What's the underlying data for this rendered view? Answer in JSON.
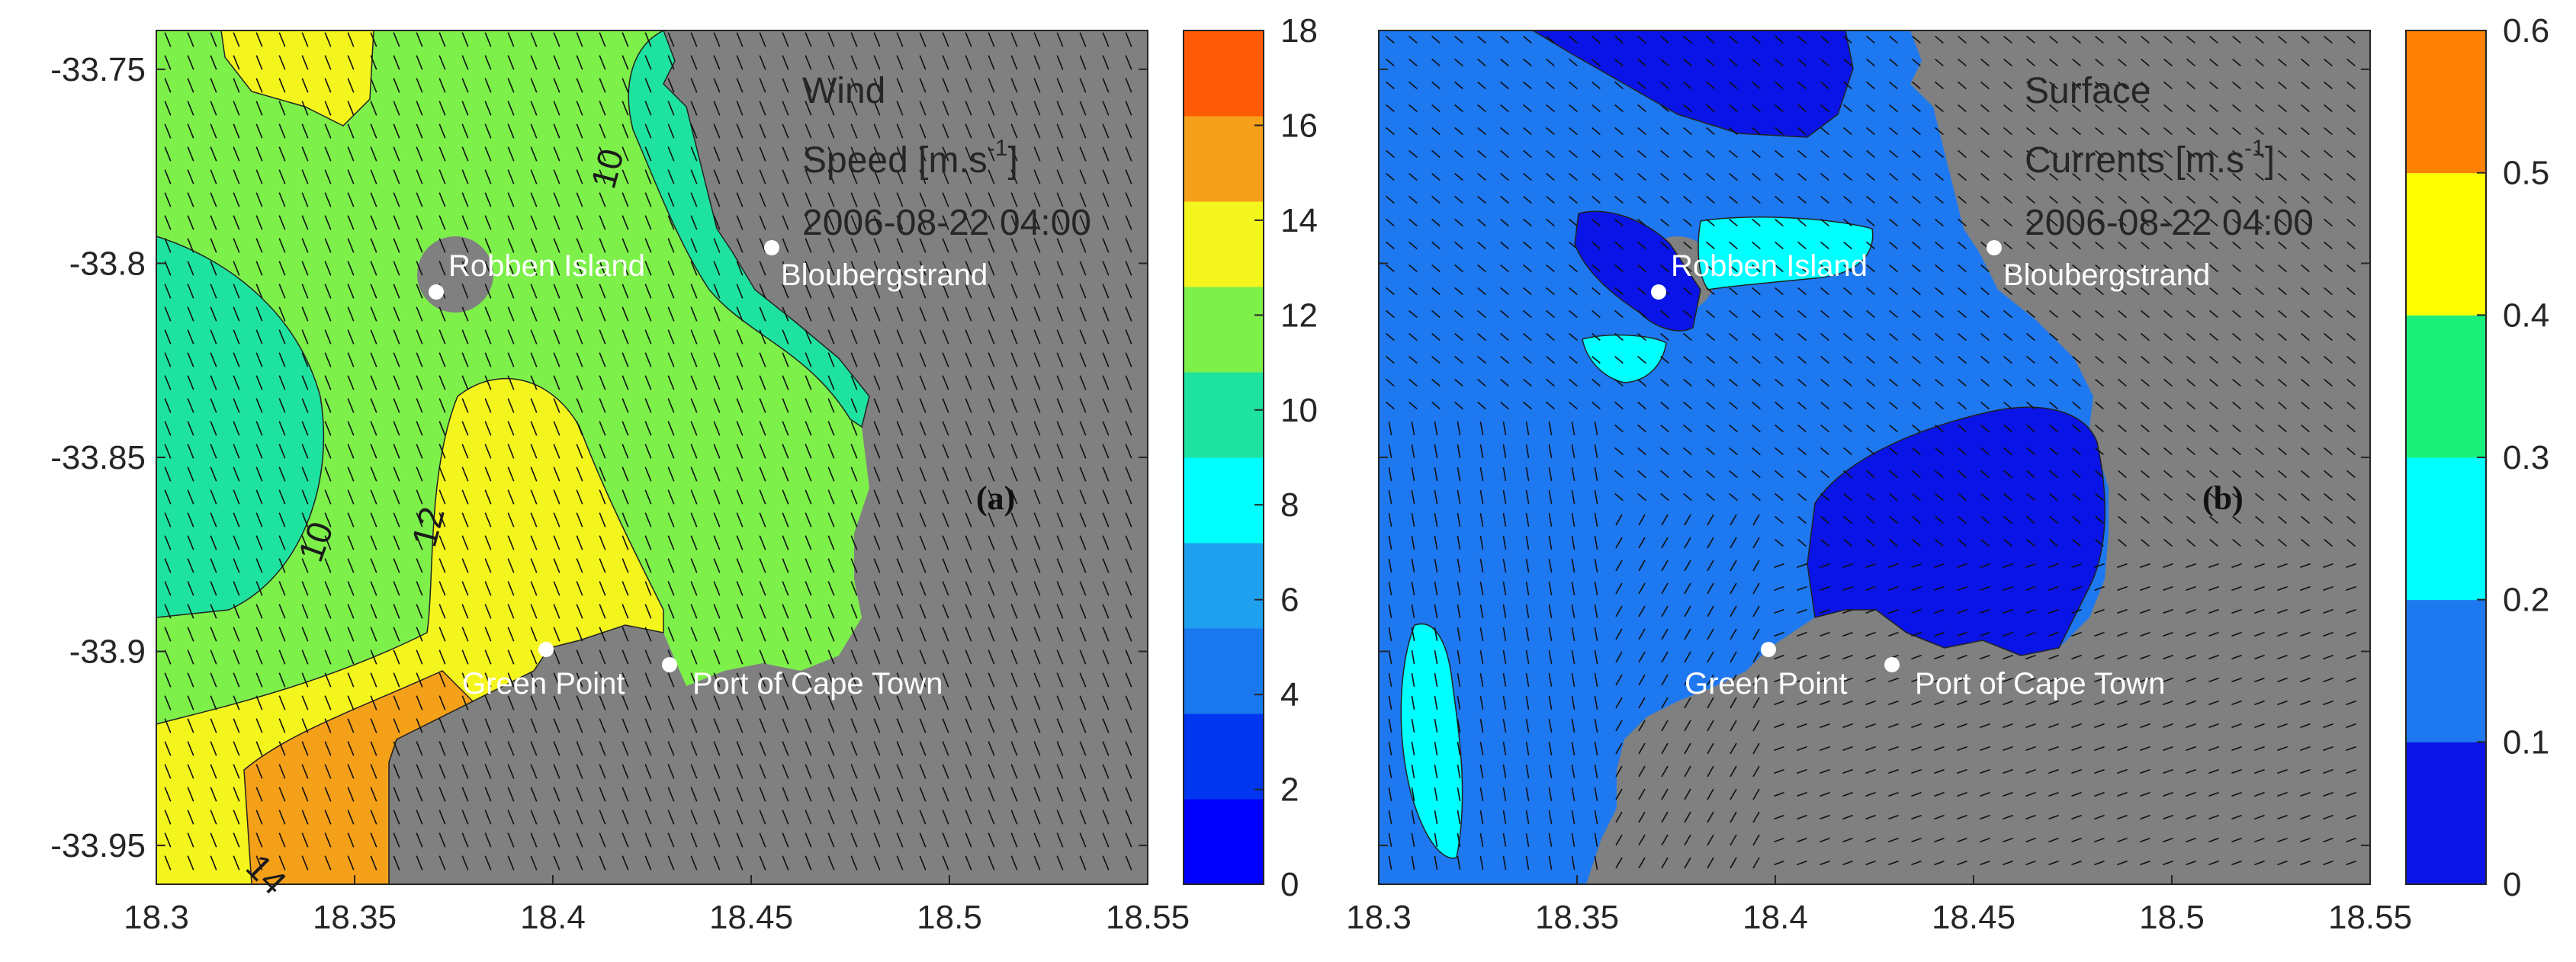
{
  "chart_data": [
    {
      "type": "heatmap",
      "panel_label": "(a)",
      "annotation_lines": [
        "Wind",
        "Speed [m.s",
        "-1",
        "]",
        "2006-08-22 04:00"
      ],
      "xlim": [
        18.3,
        18.55
      ],
      "ylim": [
        -33.96,
        -33.74
      ],
      "x_ticks": [
        18.3,
        18.35,
        18.4,
        18.45,
        18.5,
        18.55
      ],
      "x_tick_labels": [
        "18.3",
        "18.35",
        "18.4",
        "18.45",
        "18.5",
        "18.55"
      ],
      "y_ticks": [
        -33.75,
        -33.8,
        -33.85,
        -33.9,
        -33.95
      ],
      "y_tick_labels": [
        "-33.75",
        "-33.8",
        "-33.85",
        "-33.9",
        "-33.95"
      ],
      "colorbar": {
        "min": 0,
        "max": 18,
        "ticks": [
          0,
          2,
          4,
          6,
          8,
          10,
          12,
          14,
          16,
          18
        ],
        "tick_labels": [
          "0",
          "2",
          "4",
          "6",
          "8",
          "10",
          "12",
          "14",
          "16",
          "18"
        ],
        "colors": [
          "#0000ff",
          "#0036f0",
          "#1a78ee",
          "#1ea0ee",
          "#00ffff",
          "#1ee3a0",
          "#7df04a",
          "#f5f51e",
          "#f5a019",
          "#ff5a05"
        ]
      },
      "contour_labels": [
        {
          "text": "10",
          "x": 18.38,
          "y": -33.785
        },
        {
          "text": "10",
          "x": 18.33,
          "y": -33.875
        },
        {
          "text": "12",
          "x": 18.365,
          "y": -33.87
        },
        {
          "text": "14",
          "x": 18.325,
          "y": -33.955
        }
      ],
      "places": [
        {
          "name": "Robben Island",
          "x": 18.371,
          "y": -33.808
        },
        {
          "name": "Bloubergstrand",
          "x": 18.457,
          "y": -33.797
        },
        {
          "name": "Green Point",
          "x": 18.399,
          "y": -33.9
        },
        {
          "name": "Port of Cape Town",
          "x": 18.431,
          "y": -33.904
        }
      ],
      "vector_direction": "wind arrows pointing to south-south-east",
      "land_color": "#808080"
    },
    {
      "type": "heatmap",
      "panel_label": "(b)",
      "annotation_lines": [
        "Surface",
        "Currents [m.s",
        "-1",
        "]",
        "2006-08-22 04:00"
      ],
      "xlim": [
        18.3,
        18.55
      ],
      "ylim": [
        -33.96,
        -33.74
      ],
      "x_ticks": [
        18.3,
        18.35,
        18.4,
        18.45,
        18.5,
        18.55
      ],
      "x_tick_labels": [
        "18.3",
        "18.35",
        "18.4",
        "18.45",
        "18.5",
        "18.55"
      ],
      "y_ticks": [
        -33.75,
        -33.8,
        -33.85,
        -33.9,
        -33.95
      ],
      "colorbar": {
        "min": 0,
        "max": 0.6,
        "ticks": [
          0,
          0.1,
          0.2,
          0.3,
          0.4,
          0.5,
          0.6
        ],
        "tick_labels": [
          "0",
          "0.1",
          "0.2",
          "0.3",
          "0.4",
          "0.5",
          "0.6"
        ],
        "colors": [
          "#0a14e6",
          "#1e78f0",
          "#00ffff",
          "#19f07a",
          "#ffff00",
          "#ff8205"
        ]
      },
      "places": [
        {
          "name": "Robben Island",
          "x": 18.371,
          "y": -33.808
        },
        {
          "name": "Bloubergstrand",
          "x": 18.457,
          "y": -33.797
        },
        {
          "name": "Green Point",
          "x": 18.399,
          "y": -33.9
        },
        {
          "name": "Port of Cape Town",
          "x": 18.431,
          "y": -33.904
        }
      ],
      "vector_direction": "current arrows circulating, mostly south-east offshore and north along the west edge",
      "land_color": "#808080"
    }
  ]
}
